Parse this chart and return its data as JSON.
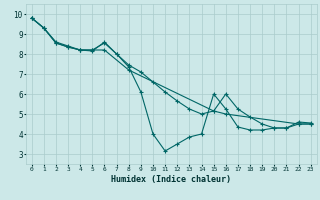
{
  "xlabel": "Humidex (Indice chaleur)",
  "background_color": "#cce8e8",
  "grid_color": "#aacccc",
  "line_color": "#006666",
  "xlim": [
    -0.5,
    23.5
  ],
  "ylim": [
    2.5,
    10.5
  ],
  "xticks": [
    0,
    1,
    2,
    3,
    4,
    5,
    6,
    7,
    8,
    9,
    10,
    11,
    12,
    13,
    14,
    15,
    16,
    17,
    18,
    19,
    20,
    21,
    22,
    23
  ],
  "yticks": [
    3,
    4,
    5,
    6,
    7,
    8,
    9,
    10
  ],
  "series": [
    {
      "x": [
        0,
        1,
        2,
        3,
        4,
        5,
        6,
        7,
        8,
        9,
        10,
        11,
        12,
        13,
        14,
        15,
        16,
        17,
        18,
        19,
        20,
        21,
        22,
        23
      ],
      "y": [
        9.8,
        9.3,
        8.55,
        8.35,
        8.2,
        8.2,
        8.55,
        8.0,
        7.35,
        6.1,
        4.0,
        3.15,
        3.5,
        3.85,
        4.0,
        6.0,
        5.25,
        4.35,
        4.2,
        4.2,
        4.3,
        4.3,
        4.6,
        4.55
      ]
    },
    {
      "x": [
        0,
        1,
        2,
        3,
        4,
        5,
        6,
        7,
        8,
        9,
        10,
        11,
        12,
        13,
        14,
        15,
        16,
        17,
        18,
        19,
        20,
        21,
        22,
        23
      ],
      "y": [
        9.8,
        9.3,
        8.6,
        8.4,
        8.2,
        8.15,
        8.6,
        8.0,
        7.45,
        7.1,
        6.6,
        6.1,
        5.65,
        5.25,
        5.0,
        5.15,
        6.0,
        5.25,
        4.85,
        4.5,
        4.3,
        4.3,
        4.5,
        4.5
      ]
    },
    {
      "x": [
        0,
        1,
        2,
        3,
        4,
        5,
        6,
        8,
        15,
        16,
        22,
        23
      ],
      "y": [
        9.8,
        9.3,
        8.55,
        8.35,
        8.2,
        8.2,
        8.2,
        7.2,
        5.15,
        5.0,
        4.5,
        4.5
      ]
    }
  ]
}
